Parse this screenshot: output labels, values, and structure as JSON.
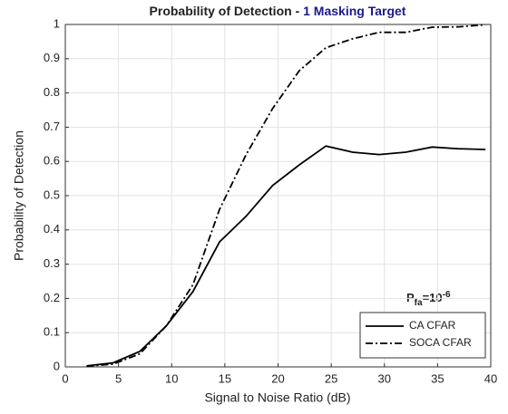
{
  "chart_data": {
    "type": "line",
    "title": "Probability of Detection -",
    "title_highlight": "1 Masking Target",
    "title_highlight_color": "#1a1a8c",
    "x_label": "Signal to Noise Ratio (dB)",
    "y_label": "Probability of Detection",
    "annotation": {
      "base": "P",
      "subscript": "fa",
      "text": "=10",
      "superscript": "-6"
    },
    "x": [
      2,
      4.5,
      7,
      9.5,
      12,
      14.5,
      17,
      19.5,
      22,
      24.5,
      27,
      29.5,
      32,
      34.5,
      37,
      39.5
    ],
    "series": [
      {
        "name": "CA CFAR",
        "color": "#000000",
        "dash": "solid",
        "values": [
          0.003,
          0.012,
          0.045,
          0.12,
          0.22,
          0.365,
          0.44,
          0.53,
          0.59,
          0.645,
          0.627,
          0.62,
          0.627,
          0.642,
          0.637,
          0.635
        ]
      },
      {
        "name": "SOCA CFAR",
        "color": "#000000",
        "dash": "dashdot",
        "values": [
          0.002,
          0.008,
          0.038,
          0.12,
          0.24,
          0.46,
          0.62,
          0.755,
          0.865,
          0.932,
          0.958,
          0.977,
          0.977,
          0.992,
          0.993,
          0.999
        ]
      }
    ],
    "xlim": [
      0,
      40
    ],
    "ylim": [
      0,
      1
    ],
    "xticks": [
      0,
      5,
      10,
      15,
      20,
      25,
      30,
      35,
      40
    ],
    "yticks": [
      0,
      0.1,
      0.2,
      0.3,
      0.4,
      0.5,
      0.6,
      0.7,
      0.8,
      0.9,
      1
    ],
    "grid": true,
    "legend": "lower right"
  }
}
